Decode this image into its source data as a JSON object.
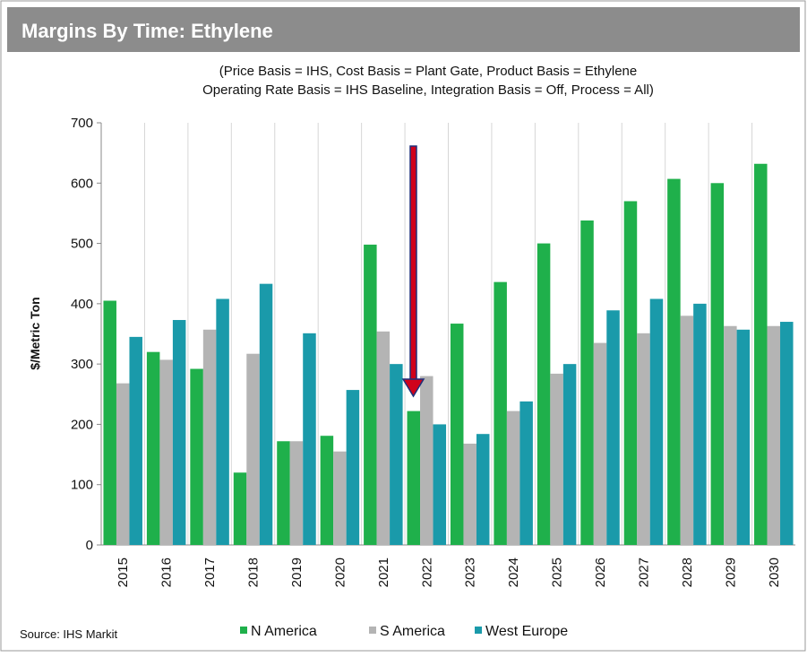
{
  "chart_data": {
    "type": "bar",
    "title": "Margins By Time:  Ethylene",
    "subtitle": [
      "(Price Basis = IHS, Cost Basis = Plant Gate, Product Basis = Ethylene",
      "Operating Rate Basis = IHS Baseline, Integration Basis = Off, Process = All)"
    ],
    "y_label": "$/Metric Ton",
    "source": "Source: IHS Markit",
    "categories": [
      "2015",
      "2016",
      "2017",
      "2018",
      "2019",
      "2020",
      "2021",
      "2022",
      "2023",
      "2024",
      "2025",
      "2026",
      "2027",
      "2028",
      "2029",
      "2030"
    ],
    "series": [
      {
        "name": "N America",
        "color": "#1fb04b",
        "values": [
          405,
          320,
          292,
          120,
          172,
          181,
          498,
          222,
          367,
          436,
          500,
          538,
          570,
          607,
          600,
          632
        ]
      },
      {
        "name": "S America",
        "color": "#b4b4b4",
        "values": [
          268,
          307,
          357,
          317,
          172,
          155,
          354,
          280,
          168,
          222,
          284,
          335,
          351,
          380,
          363,
          363
        ]
      },
      {
        "name": "West Europe",
        "color": "#1a9aaa",
        "values": [
          345,
          373,
          408,
          433,
          351,
          257,
          300,
          200,
          184,
          238,
          300,
          389,
          408,
          400,
          357,
          370
        ]
      }
    ],
    "ylim": [
      0,
      700
    ],
    "yticks": [
      0,
      100,
      200,
      300,
      400,
      500,
      600,
      700
    ],
    "grid": "vertical",
    "legend": "bottom"
  }
}
